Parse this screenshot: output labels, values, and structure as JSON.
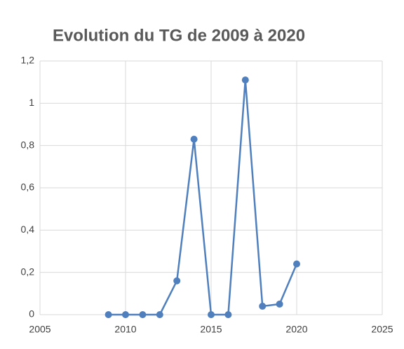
{
  "chart_data": {
    "type": "line",
    "title": "Evolution du TG de 2009 à 2020",
    "x": [
      2009,
      2010,
      2011,
      2012,
      2013,
      2014,
      2015,
      2016,
      2017,
      2018,
      2019,
      2020
    ],
    "values": [
      0,
      0,
      0,
      0,
      0.16,
      0.83,
      0,
      0,
      1.11,
      0.04,
      0.05,
      0.24
    ],
    "color": "#4f7fbd",
    "xlim": [
      2005,
      2025
    ],
    "xticks": [
      2005,
      2010,
      2015,
      2020,
      2025
    ],
    "ylim": [
      0,
      1.2
    ],
    "yticks": [
      0,
      {
        "value": 0.2,
        "label": "0,2"
      },
      {
        "value": 0.4,
        "label": "0,4"
      },
      {
        "value": 0.6,
        "label": "0,6"
      },
      {
        "value": 0.8,
        "label": "0,8"
      },
      1,
      {
        "value": 1.2,
        "label": "1,2"
      }
    ],
    "grid": true,
    "markers": true
  }
}
